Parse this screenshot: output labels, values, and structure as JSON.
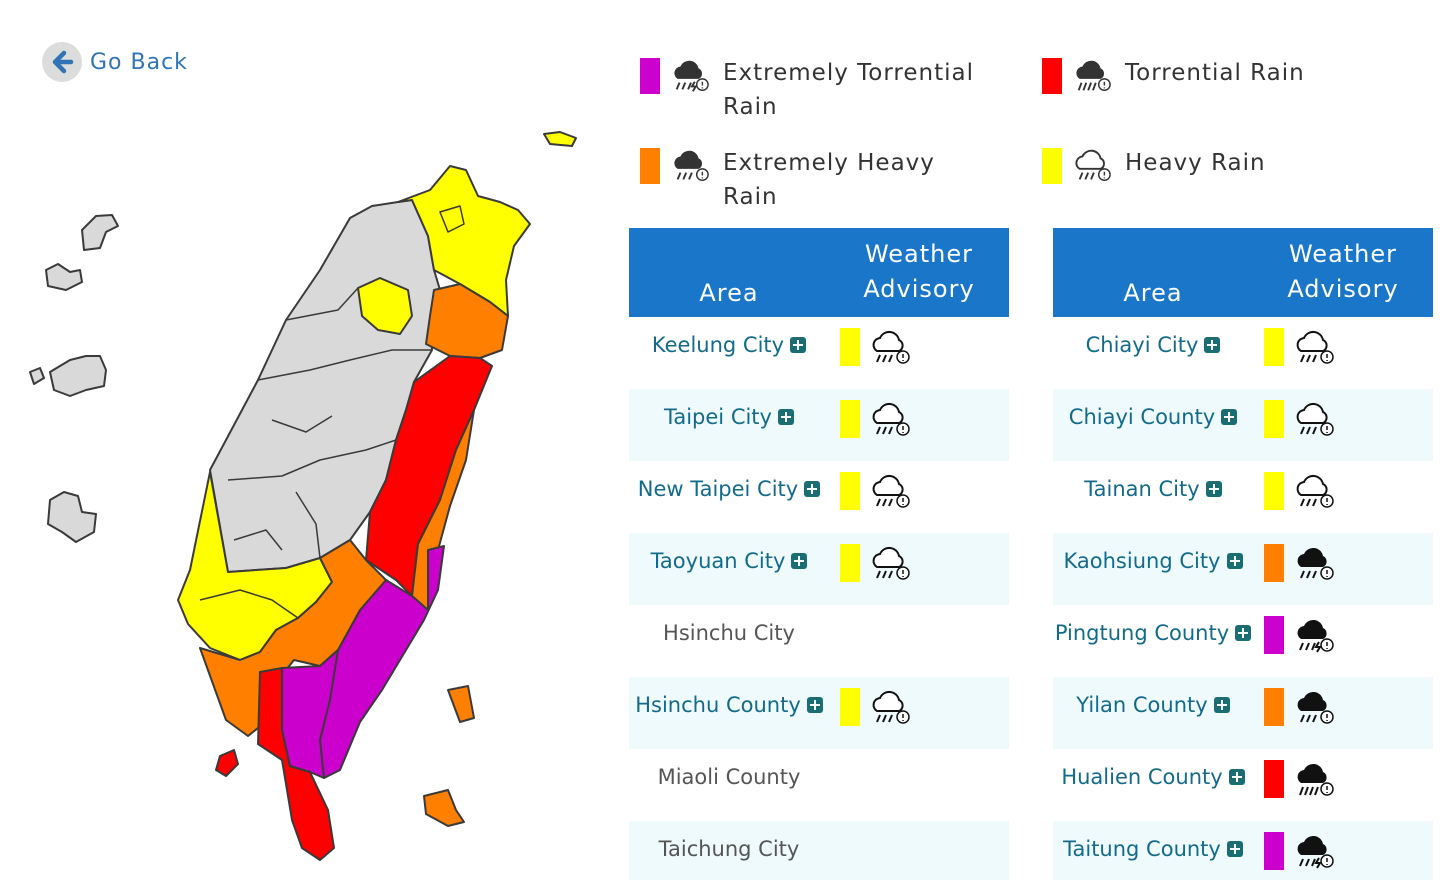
{
  "nav": {
    "go_back": "Go Back"
  },
  "colors": {
    "extremely_torrential": "#cc00cc",
    "torrential": "#ff0000",
    "extremely_heavy": "#ff8000",
    "heavy": "#ffff00",
    "header": "#1976c9"
  },
  "legend": [
    {
      "label": "Extremely Torrential Rain",
      "color": "#cc00cc",
      "icon": "extremely-torrential-rain-icon"
    },
    {
      "label": "Torrential Rain",
      "color": "#ff0000",
      "icon": "torrential-rain-icon"
    },
    {
      "label": "Extremely Heavy Rain",
      "color": "#ff8000",
      "icon": "extremely-heavy-rain-icon"
    },
    {
      "label": "Heavy Rain",
      "color": "#ffff00",
      "icon": "heavy-rain-icon"
    }
  ],
  "table_left": {
    "header": {
      "area": "Area",
      "advisory_line1": "Weather",
      "advisory_line2": "Advisory"
    },
    "rows": [
      {
        "area": "Keelung City",
        "level": "heavy"
      },
      {
        "area": "Taipei City",
        "level": "heavy"
      },
      {
        "area": "New Taipei City",
        "level": "heavy"
      },
      {
        "area": "Taoyuan City",
        "level": "heavy"
      },
      {
        "area": "Hsinchu City",
        "level": ""
      },
      {
        "area": "Hsinchu County",
        "level": "heavy"
      },
      {
        "area": "Miaoli County",
        "level": ""
      },
      {
        "area": "Taichung City",
        "level": ""
      }
    ]
  },
  "table_right": {
    "header": {
      "area": "Area",
      "advisory_line1": "Weather",
      "advisory_line2": "Advisory"
    },
    "rows": [
      {
        "area": "Chiayi City",
        "level": "heavy"
      },
      {
        "area": "Chiayi County",
        "level": "heavy"
      },
      {
        "area": "Tainan City",
        "level": "heavy"
      },
      {
        "area": "Kaohsiung City",
        "level": "extremely_heavy"
      },
      {
        "area": "Pingtung County",
        "level": "extremely_torrential"
      },
      {
        "area": "Yilan County",
        "level": "extremely_heavy"
      },
      {
        "area": "Hualien County",
        "level": "torrential"
      },
      {
        "area": "Taitung County",
        "level": "extremely_torrential"
      }
    ]
  }
}
